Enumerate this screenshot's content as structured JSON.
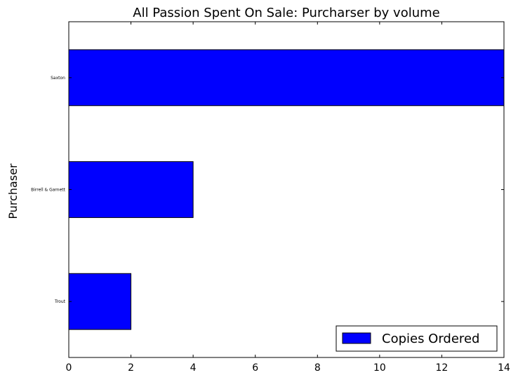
{
  "chart_data": {
    "type": "bar",
    "orientation": "horizontal",
    "title": "All Passion Spent On Sale: Purcharser by volume",
    "xlabel": "",
    "ylabel": "Purchaser",
    "categories": [
      "Trout",
      "Birrell & Garnett",
      "Saxton"
    ],
    "series": [
      {
        "name": "Copies Ordered",
        "values": [
          2,
          4,
          14
        ],
        "color": "#0000ff"
      }
    ],
    "xlim": [
      0,
      14
    ],
    "xticks": [
      0,
      2,
      4,
      6,
      8,
      10,
      12,
      14
    ],
    "grid": false,
    "legend": "lower-right"
  }
}
